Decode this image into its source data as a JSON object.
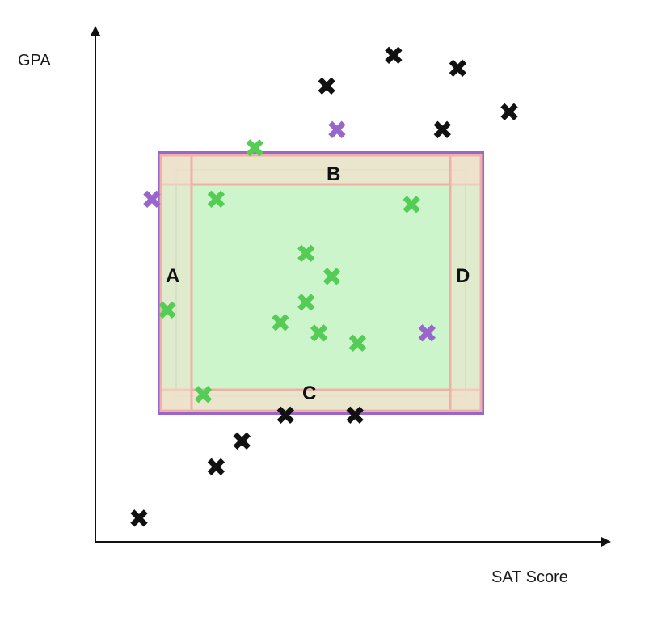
{
  "axes": {
    "x_label": "SAT Score",
    "y_label": "GPA"
  },
  "region_labels": {
    "a": "A",
    "b": "B",
    "c": "C",
    "d": "D"
  },
  "marker_glyph": "✖",
  "colors": {
    "outer_box_stroke": "#9966cc",
    "inner_fill": "#ccf5cc",
    "band_fill": "#eee2cc",
    "band_stroke": "#f0b0a8",
    "inside_mark": "#55cc55",
    "boundary_mark": "#9966cc",
    "outside_mark": "#111111",
    "axis": "#111111"
  },
  "points": {
    "outside": [
      {
        "sat": 450,
        "gpa": 885
      },
      {
        "sat": 580,
        "gpa": 945
      },
      {
        "sat": 705,
        "gpa": 920
      },
      {
        "sat": 675,
        "gpa": 800
      },
      {
        "sat": 805,
        "gpa": 835
      },
      {
        "sat": 85,
        "gpa": 45
      },
      {
        "sat": 235,
        "gpa": 145
      },
      {
        "sat": 285,
        "gpa": 195
      },
      {
        "sat": 370,
        "gpa": 245
      },
      {
        "sat": 505,
        "gpa": 245
      }
    ],
    "boundary": [
      {
        "sat": 110,
        "gpa": 665
      },
      {
        "sat": 470,
        "gpa": 800
      },
      {
        "sat": 645,
        "gpa": 405
      }
    ],
    "inside": [
      {
        "sat": 310,
        "gpa": 765
      },
      {
        "sat": 235,
        "gpa": 665
      },
      {
        "sat": 615,
        "gpa": 655
      },
      {
        "sat": 410,
        "gpa": 560
      },
      {
        "sat": 460,
        "gpa": 515
      },
      {
        "sat": 410,
        "gpa": 465
      },
      {
        "sat": 140,
        "gpa": 450
      },
      {
        "sat": 360,
        "gpa": 425
      },
      {
        "sat": 435,
        "gpa": 405
      },
      {
        "sat": 510,
        "gpa": 385
      },
      {
        "sat": 210,
        "gpa": 285
      }
    ]
  }
}
